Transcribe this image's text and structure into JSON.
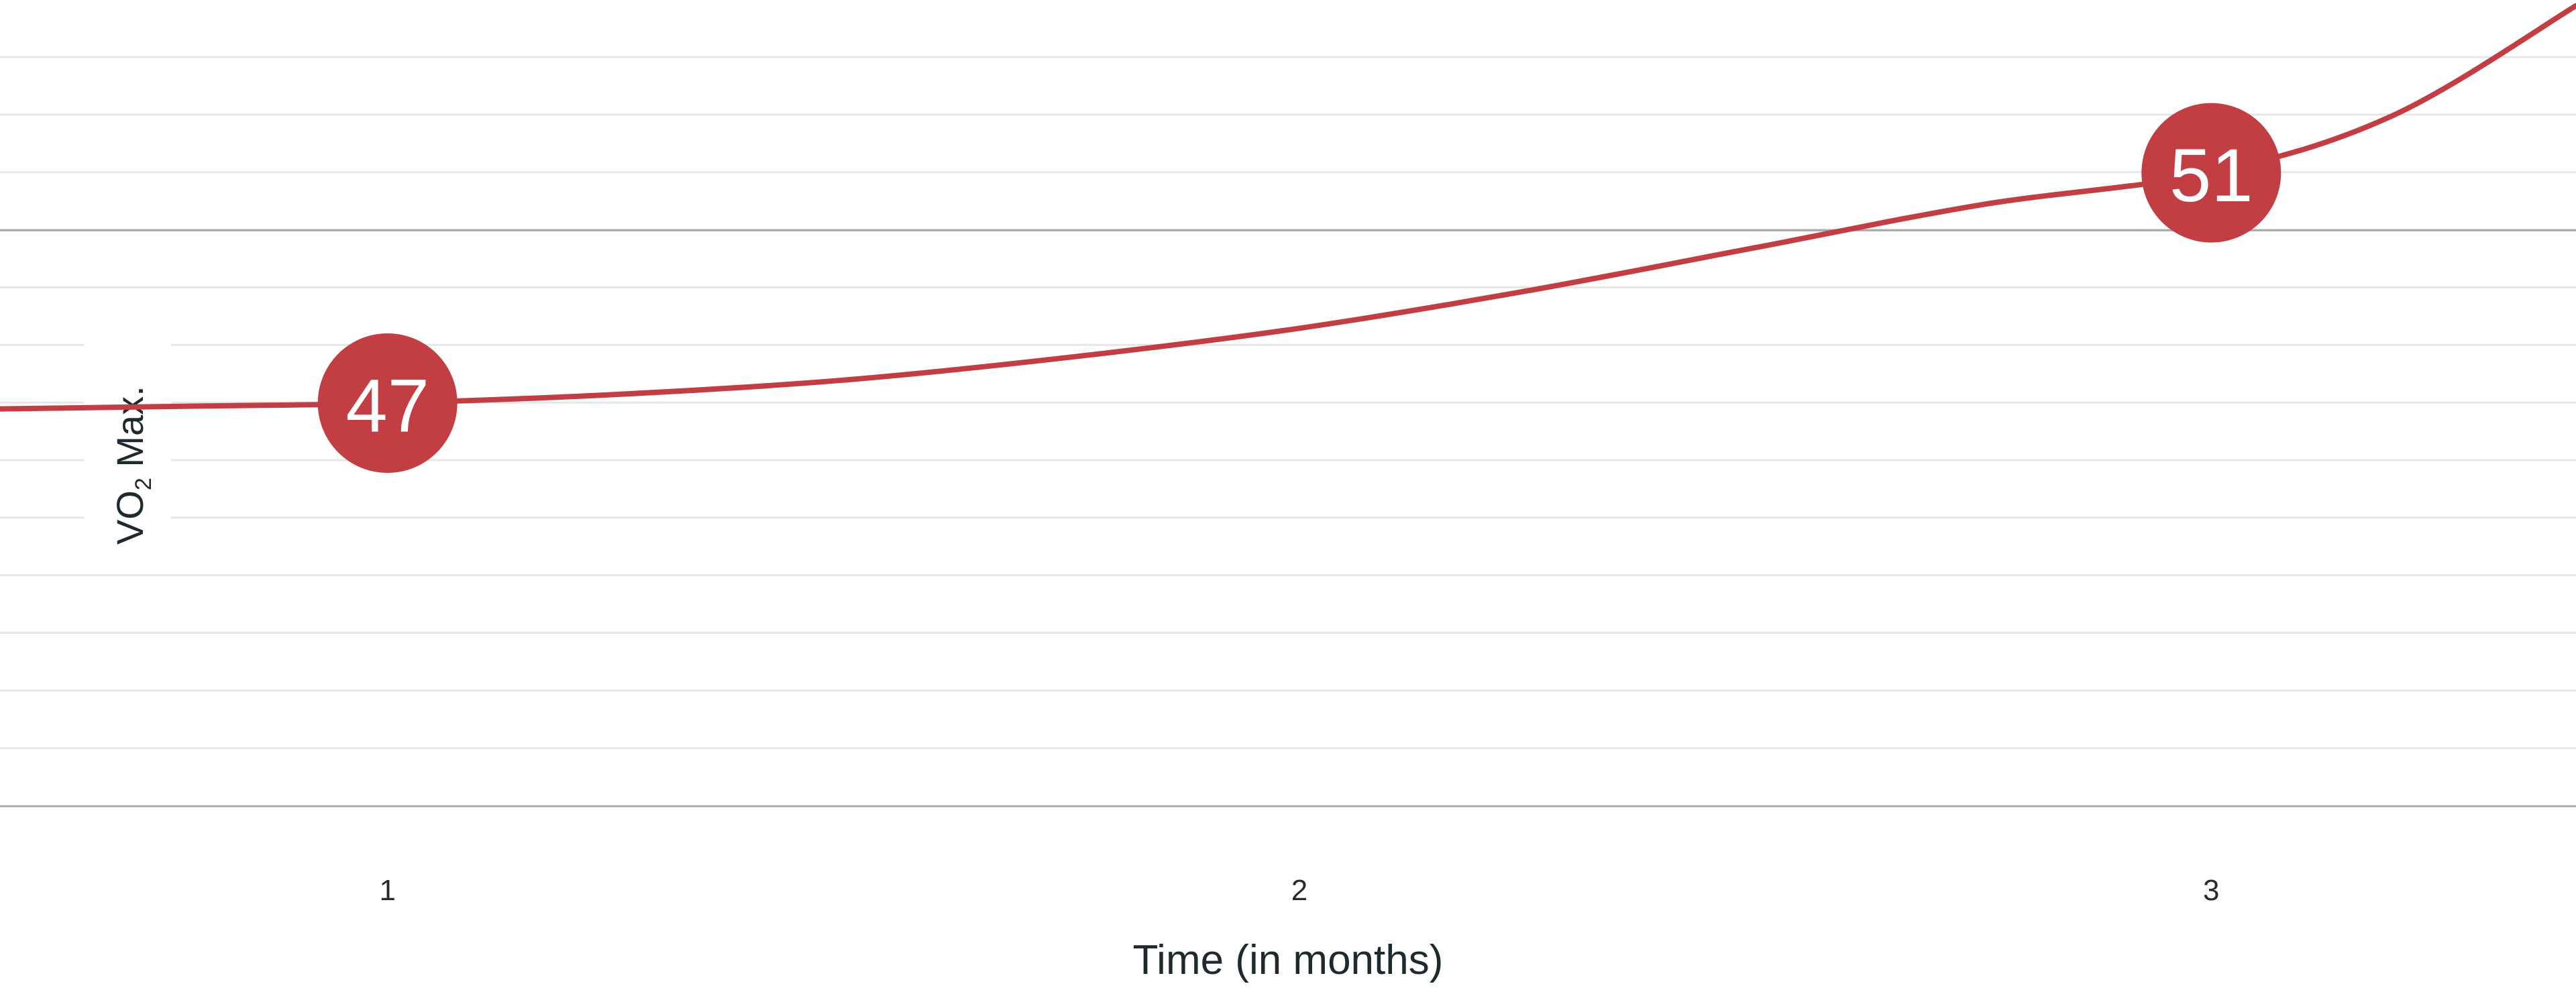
{
  "chart_data": {
    "type": "line",
    "title": "",
    "xlabel": "Time (in months)",
    "ylabel_main": "VO",
    "ylabel_sub": "2",
    "ylabel_rest": " Max.",
    "x_ticks": [
      "1",
      "2",
      "3"
    ],
    "x_tick_values": [
      1,
      2,
      3
    ],
    "xlim": [
      0.575,
      3.4
    ],
    "ylim": [
      40,
      54
    ],
    "grid": true,
    "major_gridline_value": 50,
    "series": [
      {
        "color": "#c33e43",
        "points": [
          {
            "x": 0.575,
            "y": 46.9
          },
          {
            "x": 0.8,
            "y": 46.95
          },
          {
            "x": 1.0,
            "y": 47.0
          },
          {
            "x": 1.25,
            "y": 47.15
          },
          {
            "x": 1.5,
            "y": 47.4
          },
          {
            "x": 1.75,
            "y": 47.8
          },
          {
            "x": 2.0,
            "y": 48.3
          },
          {
            "x": 2.25,
            "y": 48.95
          },
          {
            "x": 2.5,
            "y": 49.7
          },
          {
            "x": 2.75,
            "y": 50.45
          },
          {
            "x": 3.0,
            "y": 51.0
          },
          {
            "x": 3.2,
            "y": 52.0
          },
          {
            "x": 3.4,
            "y": 53.9
          }
        ]
      }
    ],
    "annotations": [
      {
        "x": 1.0,
        "y": 47,
        "label": "47"
      },
      {
        "x": 3.0,
        "y": 51,
        "label": "51"
      }
    ]
  }
}
